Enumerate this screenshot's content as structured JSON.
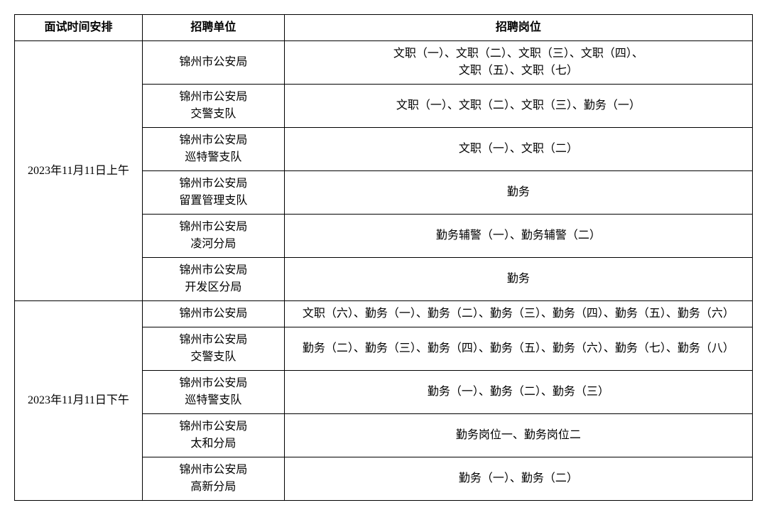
{
  "table": {
    "headers": {
      "time": "面试时间安排",
      "unit": "招聘单位",
      "post": "招聘岗位"
    },
    "sessions": [
      {
        "time": "2023年11月11日上午",
        "rows": [
          {
            "unit": "锦州市公安局",
            "post": "文职（一）、文职（二）、文职（三）、文职（四）、\n文职（五）、文职（七）"
          },
          {
            "unit": "锦州市公安局\n交警支队",
            "post": "文职（一）、文职（二）、文职（三）、勤务（一）"
          },
          {
            "unit": "锦州市公安局\n巡特警支队",
            "post": "文职（一）、文职（二）"
          },
          {
            "unit": "锦州市公安局\n留置管理支队",
            "post": "勤务"
          },
          {
            "unit": "锦州市公安局\n凌河分局",
            "post": "勤务辅警（一）、勤务辅警（二）"
          },
          {
            "unit": "锦州市公安局\n开发区分局",
            "post": "勤务"
          }
        ]
      },
      {
        "time": "2023年11月11日下午",
        "rows": [
          {
            "unit": "锦州市公安局",
            "post": "文职（六）、勤务（一）、勤务（二）、勤务（三）、勤务（四）、勤务（五）、勤务（六）"
          },
          {
            "unit": "锦州市公安局\n交警支队",
            "post": "勤务（二）、勤务（三）、勤务（四）、勤务（五）、勤务（六）、勤务（七）、勤务（八）"
          },
          {
            "unit": "锦州市公安局\n巡特警支队",
            "post": "勤务（一）、勤务（二）、勤务（三）"
          },
          {
            "unit": "锦州市公安局\n太和分局",
            "post": "勤务岗位一、勤务岗位二"
          },
          {
            "unit": "锦州市公安局\n高新分局",
            "post": "勤务（一）、勤务（二）"
          }
        ]
      }
    ],
    "styles": {
      "border_color": "#000000",
      "background_color": "#ffffff",
      "font_size": 16,
      "header_font_weight": "bold"
    }
  }
}
